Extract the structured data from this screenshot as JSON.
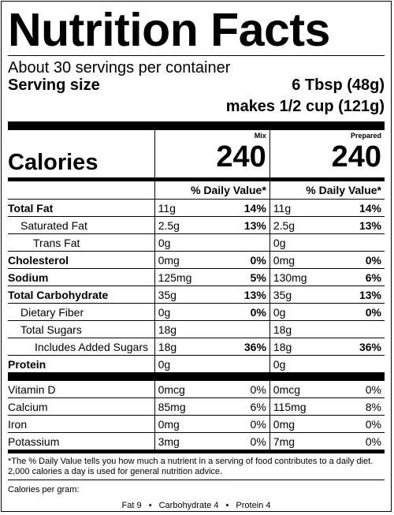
{
  "title": "Nutrition Facts",
  "servings_per_container": "About 30 servings per container",
  "serving_size": {
    "label": "Serving size",
    "amount": "6 Tbsp (48g)",
    "makes": "makes 1/2 cup (121g)"
  },
  "columns": {
    "mix": "Mix",
    "prepared": "Prepared"
  },
  "calories": {
    "label": "Calories",
    "mix": "240",
    "prepared": "240"
  },
  "daily_value_header": "% Daily Value*",
  "nutrients": [
    {
      "name": "Total Fat",
      "bold": true,
      "indent": 0,
      "mix_amount": "11g",
      "mix_dv": "14%",
      "prep_amount": "11g",
      "prep_dv": "14%"
    },
    {
      "name": "Saturated Fat",
      "bold": false,
      "indent": 1,
      "mix_amount": "2.5g",
      "mix_dv": "13%",
      "prep_amount": "2.5g",
      "prep_dv": "13%"
    },
    {
      "name": "Trans Fat",
      "bold": false,
      "indent": 2,
      "mix_amount": "0g",
      "mix_dv": "",
      "prep_amount": "0g",
      "prep_dv": ""
    },
    {
      "name": "Cholesterol",
      "bold": true,
      "indent": 0,
      "mix_amount": "0mg",
      "mix_dv": "0%",
      "prep_amount": "0mg",
      "prep_dv": "0%"
    },
    {
      "name": "Sodium",
      "bold": true,
      "indent": 0,
      "mix_amount": "125mg",
      "mix_dv": "5%",
      "prep_amount": "130mg",
      "prep_dv": "6%"
    },
    {
      "name": "Total Carbohydrate",
      "bold": true,
      "indent": 0,
      "mix_amount": "35g",
      "mix_dv": "13%",
      "prep_amount": "35g",
      "prep_dv": "13%"
    },
    {
      "name": "Dietary Fiber",
      "bold": false,
      "indent": 1,
      "mix_amount": "0g",
      "mix_dv": "0%",
      "prep_amount": "0g",
      "prep_dv": "0%"
    },
    {
      "name": "Total Sugars",
      "bold": false,
      "indent": 1,
      "mix_amount": "18g",
      "mix_dv": "",
      "prep_amount": "18g",
      "prep_dv": ""
    },
    {
      "name": "Includes Added Sugars",
      "bold": false,
      "indent": 3,
      "mix_amount": "18g",
      "mix_dv": "36%",
      "prep_amount": "18g",
      "prep_dv": "36%"
    },
    {
      "name": "Protein",
      "bold": true,
      "indent": 0,
      "mix_amount": "0g",
      "mix_dv": "",
      "prep_amount": "0g",
      "prep_dv": ""
    }
  ],
  "vitamins": [
    {
      "name": "Vitamin D",
      "mix_amount": "0mcg",
      "mix_dv": "0%",
      "prep_amount": "0mcg",
      "prep_dv": "0%"
    },
    {
      "name": "Calcium",
      "mix_amount": "85mg",
      "mix_dv": "6%",
      "prep_amount": "115mg",
      "prep_dv": "8%"
    },
    {
      "name": "Iron",
      "mix_amount": "0mg",
      "mix_dv": "0%",
      "prep_amount": "0mg",
      "prep_dv": "0%"
    },
    {
      "name": "Potassium",
      "mix_amount": "3mg",
      "mix_dv": "0%",
      "prep_amount": "7mg",
      "prep_dv": "0%"
    }
  ],
  "footnote": "*The % Daily Value tells you how much a nutrient in a serving of food contributes to a daily diet. 2,000 calories a day is used for general nutrition advice.",
  "calories_per_gram": {
    "label": "Calories per gram:",
    "fat": "Fat 9",
    "carbohydrate": "Carbohydrate 4",
    "protein": "Protein 4",
    "separator": "•"
  }
}
